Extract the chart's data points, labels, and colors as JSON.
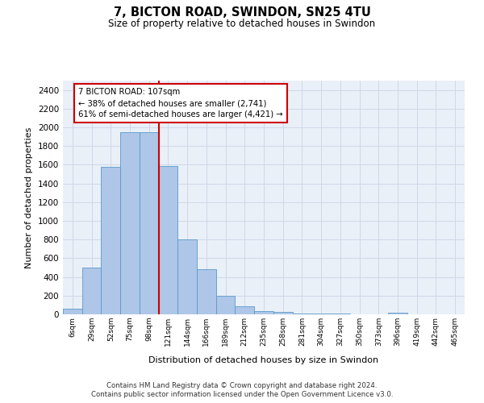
{
  "title": "7, BICTON ROAD, SWINDON, SN25 4TU",
  "subtitle": "Size of property relative to detached houses in Swindon",
  "xlabel": "Distribution of detached houses by size in Swindon",
  "ylabel": "Number of detached properties",
  "categories": [
    "6sqm",
    "29sqm",
    "52sqm",
    "75sqm",
    "98sqm",
    "121sqm",
    "144sqm",
    "166sqm",
    "189sqm",
    "212sqm",
    "235sqm",
    "258sqm",
    "281sqm",
    "304sqm",
    "327sqm",
    "350sqm",
    "373sqm",
    "396sqm",
    "419sqm",
    "442sqm",
    "465sqm"
  ],
  "values": [
    60,
    500,
    1580,
    1950,
    1950,
    1590,
    800,
    480,
    195,
    90,
    35,
    25,
    10,
    5,
    5,
    0,
    0,
    20,
    0,
    0,
    0
  ],
  "bar_color": "#aec6e8",
  "bar_edge_color": "#5a9ac8",
  "vline_color": "#cc0000",
  "vline_x": 4.5,
  "annotation_title": "7 BICTON ROAD: 107sqm",
  "annotation_line1": "← 38% of detached houses are smaller (2,741)",
  "annotation_line2": "61% of semi-detached houses are larger (4,421) →",
  "annotation_box_color": "#ffffff",
  "annotation_box_edge_color": "#cc0000",
  "ylim": [
    0,
    2500
  ],
  "yticks": [
    0,
    200,
    400,
    600,
    800,
    1000,
    1200,
    1400,
    1600,
    1800,
    2000,
    2200,
    2400
  ],
  "grid_color": "#d0d8e8",
  "bg_color": "#eaf0f8",
  "footer1": "Contains HM Land Registry data © Crown copyright and database right 2024.",
  "footer2": "Contains public sector information licensed under the Open Government Licence v3.0."
}
